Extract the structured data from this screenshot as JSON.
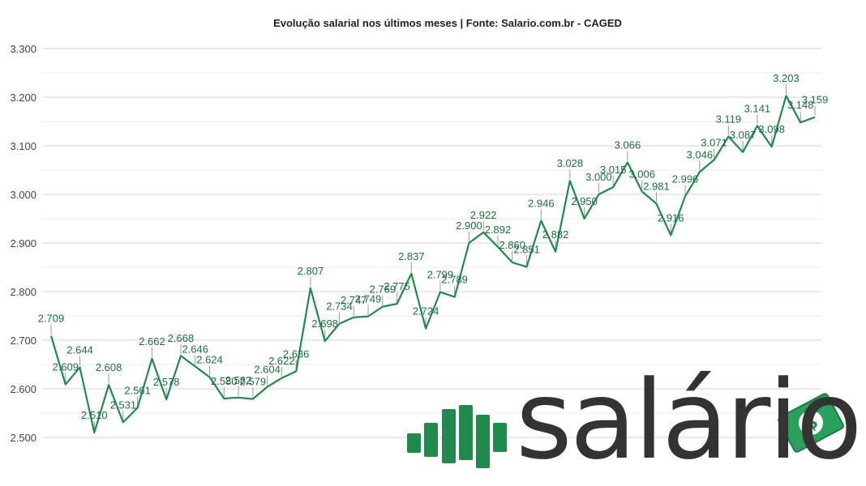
{
  "chart_data": {
    "type": "line",
    "title": "Evolução salarial nos últimos meses | Fonte: Salario.com.br - CAGED",
    "xlabel": "",
    "ylabel": "",
    "ylim": [
      2500,
      3300
    ],
    "yticks": [
      2500,
      2600,
      2700,
      2800,
      2900,
      3000,
      3100,
      3200,
      3300
    ],
    "ytick_labels": [
      "2.500",
      "2.600",
      "2.700",
      "2.800",
      "2.900",
      "3.000",
      "3.100",
      "3.200",
      "3.300"
    ],
    "grid": true,
    "legend": "none",
    "series": [
      {
        "color": "#1f8a4c",
        "values": [
          2709,
          2609,
          2644,
          2510,
          2608,
          2531,
          2561,
          2662,
          2578,
          2668,
          2646,
          2624,
          2580,
          2582,
          2579,
          2604,
          2622,
          2636,
          2807,
          2698,
          2734,
          2747,
          2749,
          2769,
          2775,
          2837,
          2724,
          2799,
          2789,
          2900,
          2922,
          2892,
          2860,
          2851,
          2946,
          2882,
          3028,
          2950,
          3000,
          3015,
          3066,
          3006,
          2981,
          2916,
          2996,
          3046,
          3071,
          3119,
          3087,
          3141,
          3098,
          3203,
          3148,
          3159
        ],
        "labels": [
          "2.709",
          "2.609",
          "2.644",
          "2.510",
          "2.608",
          "2.531",
          "2.561",
          "2.662",
          "2.578",
          "2.668",
          "2.646",
          "2.624",
          "2.580",
          "2.582",
          "2.579",
          "2.604",
          "2.622",
          "2.636",
          "2.807",
          "2.698",
          "2.734",
          "2.747",
          "2.749",
          "2.769",
          "2.775",
          "2.837",
          "2.724",
          "2.799",
          "2.789",
          "2.900",
          "2.922",
          "2.892",
          "2.860",
          "2.851",
          "2.946",
          "2.882",
          "3.028",
          "2.950",
          "3.000",
          "3.015",
          "3.066",
          "3.006",
          "2.981",
          "2.916",
          "2.996",
          "3.046",
          "3.071",
          "3.119",
          "3.087",
          "3.141",
          "3.098",
          "3.203",
          "3.148",
          "3.159"
        ]
      }
    ]
  },
  "brand": {
    "name": "salário",
    "primary_color": "#1f8a4c",
    "text_color": "#333333"
  }
}
